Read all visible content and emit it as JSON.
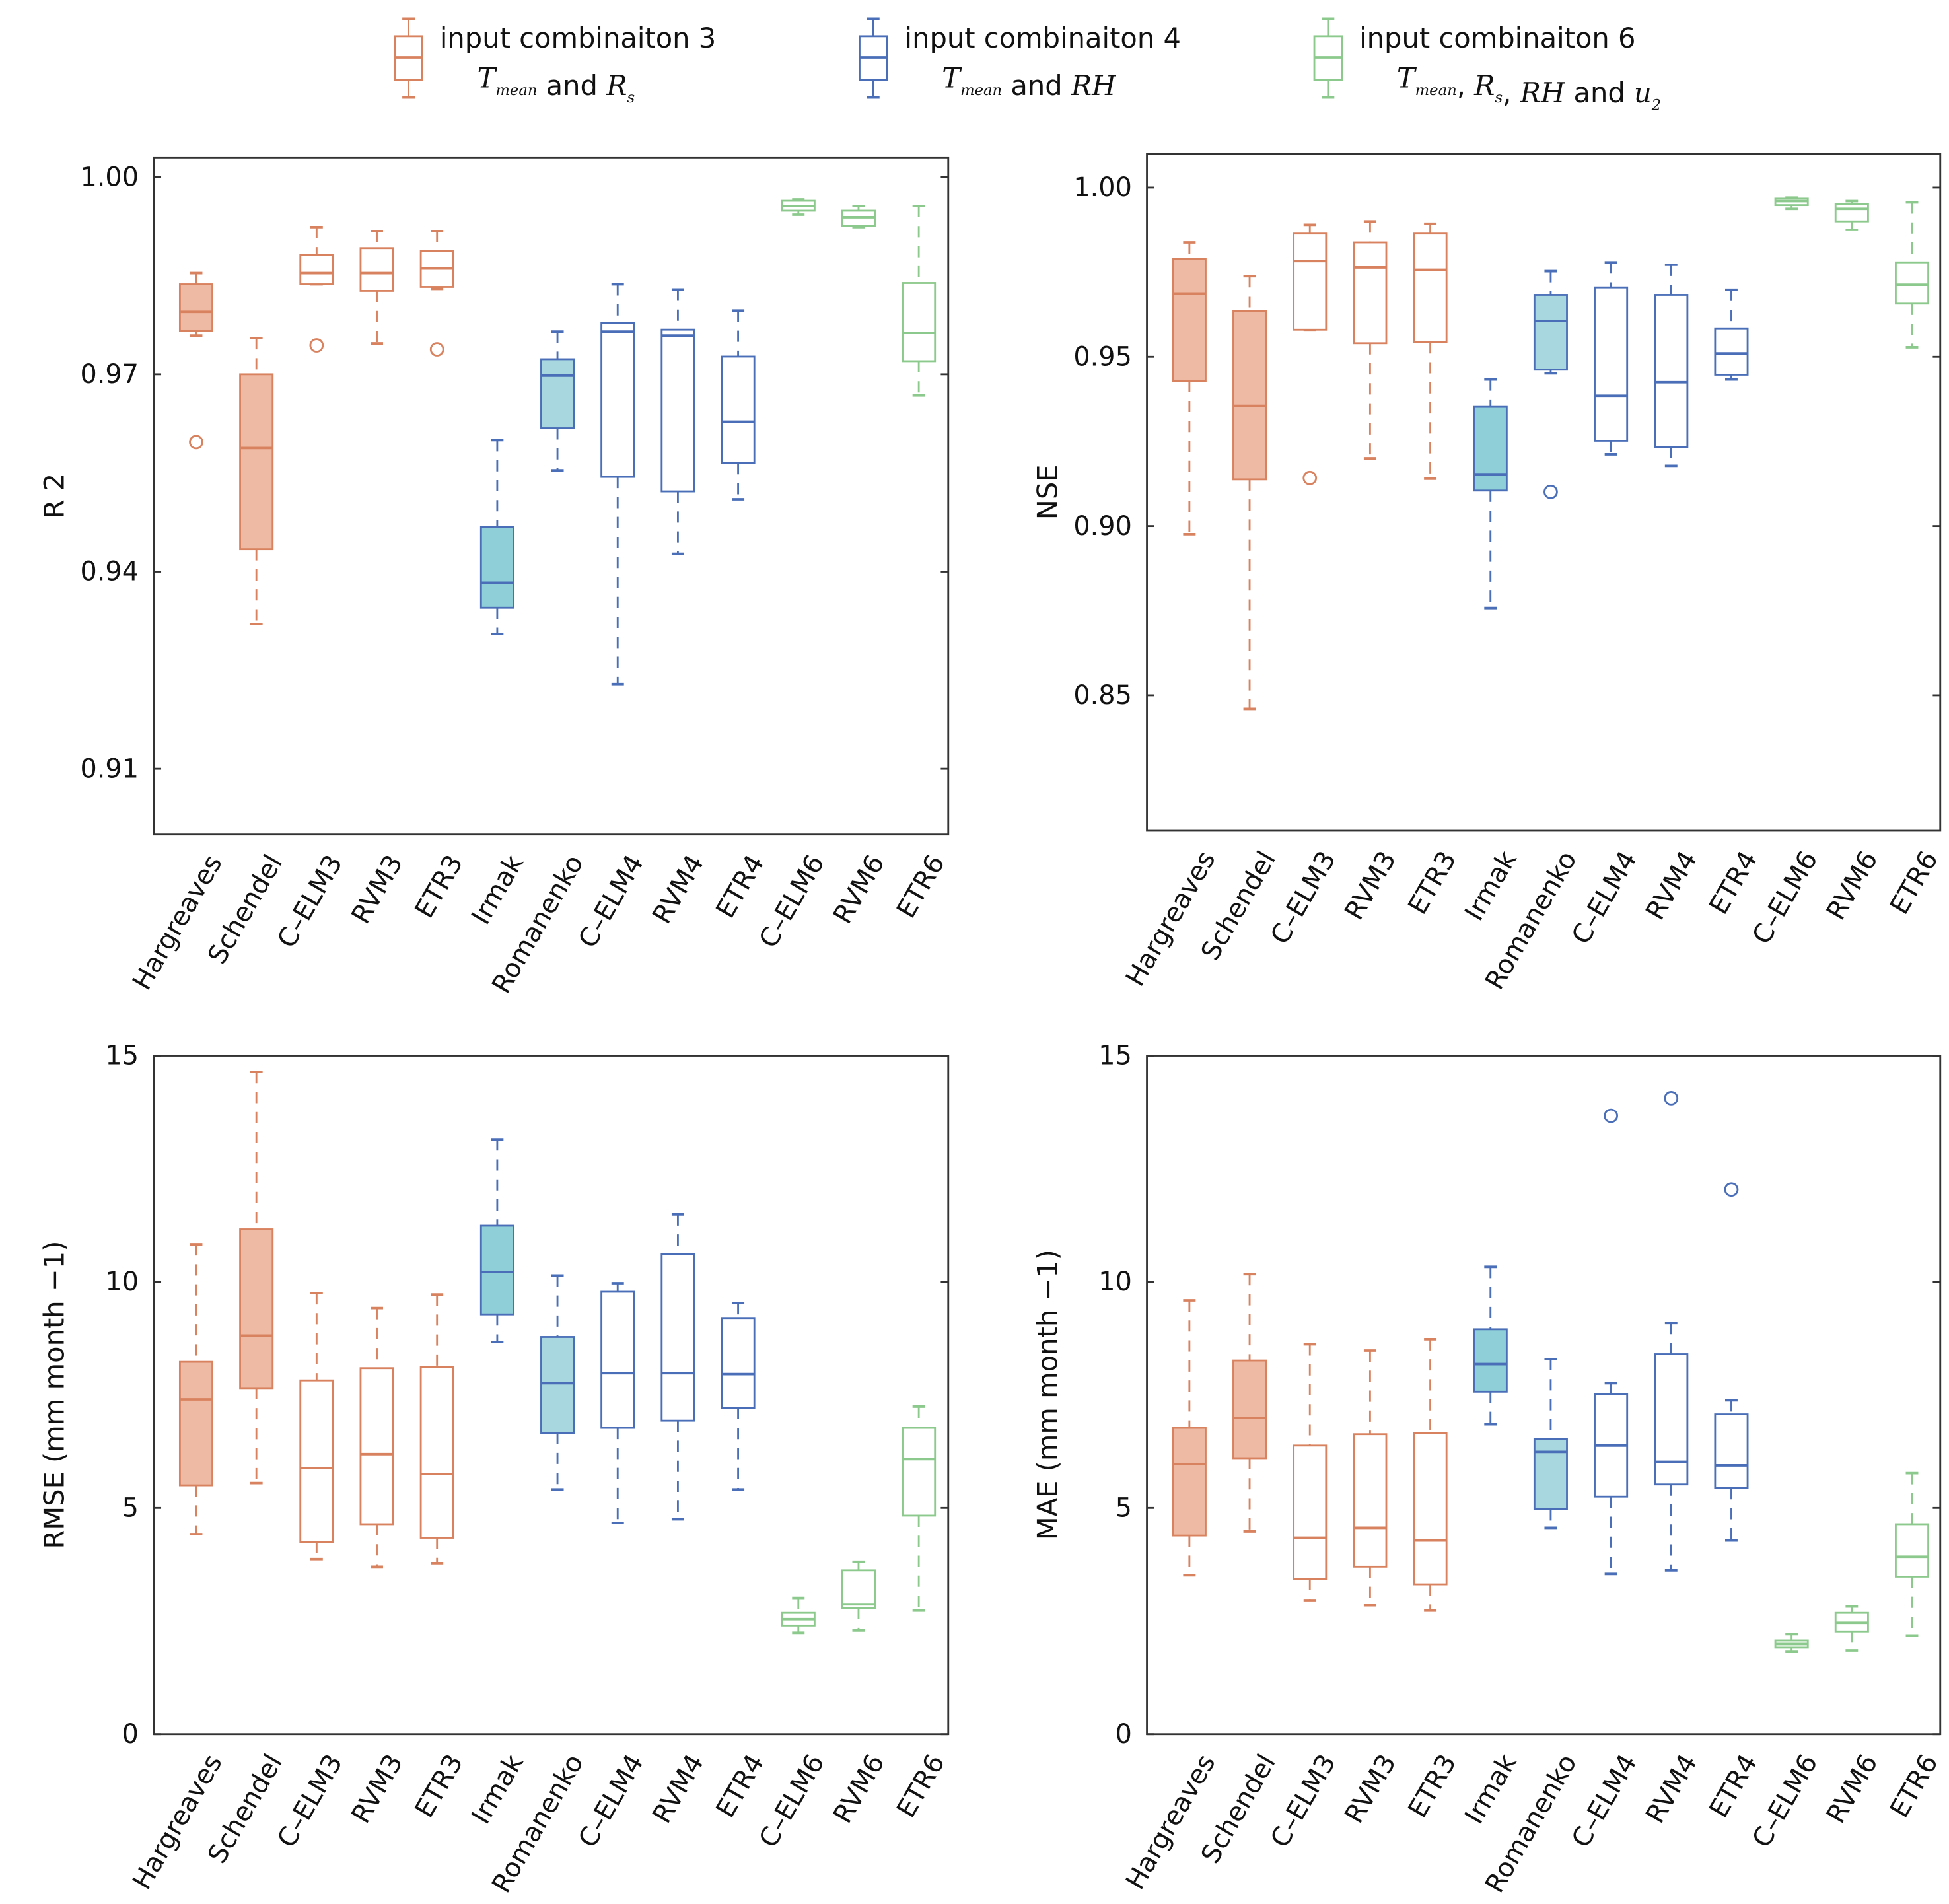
{
  "legend": [
    {
      "title": "input combinaiton 3",
      "formula": [
        [
          "T",
          "mean"
        ],
        [
          " and ",
          ""
        ],
        [
          "R",
          "s"
        ]
      ],
      "color": "#d9825f"
    },
    {
      "title": "input combinaiton 4",
      "formula": [
        [
          "T",
          "mean"
        ],
        [
          " and ",
          ""
        ],
        [
          "RH",
          ""
        ]
      ],
      "color": "#4a6fb8"
    },
    {
      "title": "input combinaiton 6",
      "formula": [
        [
          "T",
          "mean"
        ],
        [
          ", ",
          ""
        ],
        [
          "R",
          "s"
        ],
        [
          ", ",
          ""
        ],
        [
          "RH",
          ""
        ],
        [
          " and ",
          ""
        ],
        [
          "u",
          "2"
        ]
      ],
      "color": "#8cc98c"
    }
  ],
  "colors": {
    "orange": "#d9825f",
    "orange_fill": "#eebaa3",
    "blue": "#4a6fb8",
    "teal_fill_dark": "#8fd0d8",
    "teal_fill_light": "#a9d7df",
    "green": "#8cc98c"
  },
  "chart_data": [
    {
      "type": "box",
      "ylabel": "R 2",
      "ylim": [
        0.9,
        1.003
      ],
      "yticks": [
        1.0,
        0.97,
        0.94,
        0.91
      ],
      "tick_format": 2,
      "categories": [
        "Hargreaves",
        "Schendel",
        "C–ELM3",
        "RVM3",
        "ETR3",
        "Irmak",
        "Romanenko",
        "C–ELM4",
        "RVM4",
        "ETR4",
        "C–ELM6",
        "RVM6",
        "ETR6"
      ],
      "groups": [
        "3",
        "3",
        "3",
        "3",
        "3",
        "4",
        "4",
        "4",
        "4",
        "4",
        "6",
        "6",
        "6"
      ],
      "filled": [
        true,
        true,
        false,
        false,
        false,
        true,
        true,
        false,
        false,
        false,
        false,
        false,
        false
      ],
      "boxes": [
        {
          "min": 0.9759,
          "q1": 0.9766,
          "median": 0.9795,
          "q3": 0.9837,
          "max": 0.9854,
          "outliers": [
            0.9597
          ]
        },
        {
          "min": 0.932,
          "q1": 0.9434,
          "median": 0.9588,
          "q3": 0.97,
          "max": 0.9755,
          "outliers": []
        },
        {
          "min": 0.9837,
          "q1": 0.9837,
          "median": 0.9854,
          "q3": 0.9882,
          "max": 0.9924,
          "outliers": [
            0.9744
          ]
        },
        {
          "min": 0.9747,
          "q1": 0.9827,
          "median": 0.9854,
          "q3": 0.9892,
          "max": 0.9918,
          "outliers": []
        },
        {
          "min": 0.983,
          "q1": 0.9833,
          "median": 0.9861,
          "q3": 0.9888,
          "max": 0.9918,
          "outliers": [
            0.9738
          ]
        },
        {
          "min": 0.9305,
          "q1": 0.9345,
          "median": 0.9383,
          "q3": 0.9468,
          "max": 0.96,
          "outliers": []
        },
        {
          "min": 0.9554,
          "q1": 0.9618,
          "median": 0.9698,
          "q3": 0.9723,
          "max": 0.9765,
          "outliers": []
        },
        {
          "min": 0.9229,
          "q1": 0.9544,
          "median": 0.9765,
          "q3": 0.9778,
          "max": 0.9837,
          "outliers": []
        },
        {
          "min": 0.9427,
          "q1": 0.9522,
          "median": 0.9759,
          "q3": 0.9768,
          "max": 0.9829,
          "outliers": []
        },
        {
          "min": 0.951,
          "q1": 0.9565,
          "median": 0.9628,
          "q3": 0.9727,
          "max": 0.9797,
          "outliers": []
        },
        {
          "min": 0.9943,
          "q1": 0.9949,
          "median": 0.9956,
          "q3": 0.9964,
          "max": 0.9966,
          "outliers": []
        },
        {
          "min": 0.9924,
          "q1": 0.9926,
          "median": 0.9939,
          "q3": 0.9949,
          "max": 0.9956,
          "outliers": []
        },
        {
          "min": 0.9668,
          "q1": 0.972,
          "median": 0.9763,
          "q3": 0.9839,
          "max": 0.9956,
          "outliers": []
        }
      ]
    },
    {
      "type": "box",
      "ylabel": "NSE",
      "ylim": [
        0.81,
        1.01
      ],
      "yticks": [
        1.0,
        0.95,
        0.9,
        0.85
      ],
      "tick_format": 2,
      "categories": [
        "Hargreaves",
        "Schendel",
        "C–ELM3",
        "RVM3",
        "ETR3",
        "Irmak",
        "Romanenko",
        "C–ELM4",
        "RVM4",
        "ETR4",
        "C–ELM6",
        "RVM6",
        "ETR6"
      ],
      "groups": [
        "3",
        "3",
        "3",
        "3",
        "3",
        "4",
        "4",
        "4",
        "4",
        "4",
        "6",
        "6",
        "6"
      ],
      "filled": [
        true,
        true,
        false,
        false,
        false,
        true,
        true,
        false,
        false,
        false,
        false,
        false,
        false
      ],
      "boxes": [
        {
          "min": 0.8976,
          "q1": 0.9429,
          "median": 0.9687,
          "q3": 0.979,
          "max": 0.9838,
          "outliers": []
        },
        {
          "min": 0.846,
          "q1": 0.9138,
          "median": 0.9355,
          "q3": 0.9635,
          "max": 0.9738,
          "outliers": []
        },
        {
          "min": 0.958,
          "q1": 0.958,
          "median": 0.9783,
          "q3": 0.9864,
          "max": 0.989,
          "outliers": [
            0.9142
          ]
        },
        {
          "min": 0.92,
          "q1": 0.954,
          "median": 0.9764,
          "q3": 0.9838,
          "max": 0.99,
          "outliers": []
        },
        {
          "min": 0.914,
          "q1": 0.9543,
          "median": 0.9757,
          "q3": 0.9864,
          "max": 0.9893,
          "outliers": []
        },
        {
          "min": 0.8758,
          "q1": 0.9105,
          "median": 0.9153,
          "q3": 0.9352,
          "max": 0.9433,
          "outliers": []
        },
        {
          "min": 0.9451,
          "q1": 0.9462,
          "median": 0.9606,
          "q3": 0.9683,
          "max": 0.9753,
          "outliers": [
            0.9101
          ]
        },
        {
          "min": 0.9212,
          "q1": 0.9252,
          "median": 0.9385,
          "q3": 0.9705,
          "max": 0.9779,
          "outliers": []
        },
        {
          "min": 0.9178,
          "q1": 0.9234,
          "median": 0.9425,
          "q3": 0.9683,
          "max": 0.9772,
          "outliers": []
        },
        {
          "min": 0.9433,
          "q1": 0.9447,
          "median": 0.951,
          "q3": 0.9584,
          "max": 0.9698,
          "outliers": []
        },
        {
          "min": 0.9937,
          "q1": 0.9948,
          "median": 0.996,
          "q3": 0.9967,
          "max": 0.997,
          "outliers": []
        },
        {
          "min": 0.9875,
          "q1": 0.99,
          "median": 0.9937,
          "q3": 0.9952,
          "max": 0.996,
          "outliers": []
        },
        {
          "min": 0.9528,
          "q1": 0.9657,
          "median": 0.9713,
          "q3": 0.9779,
          "max": 0.9956,
          "outliers": []
        }
      ]
    },
    {
      "type": "box",
      "ylabel": "RMSE (mm month −1)",
      "ylim": [
        0,
        15
      ],
      "yticks": [
        15,
        10,
        5,
        0
      ],
      "tick_format": 0,
      "categories": [
        "Hargreaves",
        "Schendel",
        "C–ELM3",
        "RVM3",
        "ETR3",
        "Irmak",
        "Romanenko",
        "C–ELM4",
        "RVM4",
        "ETR4",
        "C–ELM6",
        "RVM6",
        "ETR6"
      ],
      "groups": [
        "3",
        "3",
        "3",
        "3",
        "3",
        "4",
        "4",
        "4",
        "4",
        "4",
        "6",
        "6",
        "6"
      ],
      "filled": [
        true,
        true,
        false,
        false,
        false,
        true,
        true,
        false,
        false,
        false,
        false,
        false,
        false
      ],
      "boxes": [
        {
          "min": 4.42,
          "q1": 5.5,
          "median": 7.4,
          "q3": 8.23,
          "max": 10.83,
          "outliers": []
        },
        {
          "min": 5.55,
          "q1": 7.65,
          "median": 8.81,
          "q3": 11.16,
          "max": 14.64,
          "outliers": []
        },
        {
          "min": 3.87,
          "q1": 4.25,
          "median": 5.88,
          "q3": 7.82,
          "max": 9.75,
          "outliers": []
        },
        {
          "min": 3.7,
          "q1": 4.64,
          "median": 6.19,
          "q3": 8.09,
          "max": 9.42,
          "outliers": []
        },
        {
          "min": 3.78,
          "q1": 4.34,
          "median": 5.75,
          "q3": 8.12,
          "max": 9.72,
          "outliers": []
        },
        {
          "min": 8.67,
          "q1": 9.28,
          "median": 10.22,
          "q3": 11.24,
          "max": 13.15,
          "outliers": []
        },
        {
          "min": 5.41,
          "q1": 6.66,
          "median": 7.76,
          "q3": 8.78,
          "max": 10.14,
          "outliers": []
        },
        {
          "min": 4.67,
          "q1": 6.77,
          "median": 7.98,
          "q3": 9.78,
          "max": 9.97,
          "outliers": []
        },
        {
          "min": 4.75,
          "q1": 6.93,
          "median": 7.98,
          "q3": 10.61,
          "max": 11.49,
          "outliers": []
        },
        {
          "min": 5.41,
          "q1": 7.21,
          "median": 7.96,
          "q3": 9.2,
          "max": 9.53,
          "outliers": []
        },
        {
          "min": 2.24,
          "q1": 2.4,
          "median": 2.54,
          "q3": 2.68,
          "max": 3.01,
          "outliers": []
        },
        {
          "min": 2.29,
          "q1": 2.79,
          "median": 2.87,
          "q3": 3.62,
          "max": 3.81,
          "outliers": []
        },
        {
          "min": 2.73,
          "q1": 4.83,
          "median": 6.08,
          "q3": 6.77,
          "max": 7.24,
          "outliers": []
        }
      ]
    },
    {
      "type": "box",
      "ylabel": "MAE (mm month −1)",
      "ylim": [
        0,
        15
      ],
      "yticks": [
        15,
        10,
        5,
        0
      ],
      "tick_format": 0,
      "categories": [
        "Hargreaves",
        "Schendel",
        "C–ELM3",
        "RVM3",
        "ETR3",
        "Irmak",
        "Romanenko",
        "C–ELM4",
        "RVM4",
        "ETR4",
        "C–ELM6",
        "RVM6",
        "ETR6"
      ],
      "groups": [
        "3",
        "3",
        "3",
        "3",
        "3",
        "4",
        "4",
        "4",
        "4",
        "4",
        "6",
        "6",
        "6"
      ],
      "filled": [
        true,
        true,
        false,
        false,
        false,
        true,
        true,
        false,
        false,
        false,
        false,
        false,
        false
      ],
      "boxes": [
        {
          "min": 3.51,
          "q1": 4.39,
          "median": 5.97,
          "q3": 6.77,
          "max": 9.59,
          "outliers": []
        },
        {
          "min": 4.48,
          "q1": 6.1,
          "median": 6.99,
          "q3": 8.26,
          "max": 10.17,
          "outliers": []
        },
        {
          "min": 2.96,
          "q1": 3.43,
          "median": 4.34,
          "q3": 6.38,
          "max": 8.62,
          "outliers": []
        },
        {
          "min": 2.85,
          "q1": 3.7,
          "median": 4.56,
          "q3": 6.63,
          "max": 8.48,
          "outliers": []
        },
        {
          "min": 2.73,
          "q1": 3.31,
          "median": 4.28,
          "q3": 6.66,
          "max": 8.73,
          "outliers": []
        },
        {
          "min": 6.85,
          "q1": 7.57,
          "median": 8.18,
          "q3": 8.95,
          "max": 10.33,
          "outliers": []
        },
        {
          "min": 4.56,
          "q1": 4.97,
          "median": 6.24,
          "q3": 6.52,
          "max": 8.29,
          "outliers": []
        },
        {
          "min": 3.54,
          "q1": 5.25,
          "median": 6.38,
          "q3": 7.51,
          "max": 7.76,
          "outliers": [
            13.67
          ]
        },
        {
          "min": 3.62,
          "q1": 5.52,
          "median": 6.02,
          "q3": 8.4,
          "max": 9.09,
          "outliers": [
            14.06
          ]
        },
        {
          "min": 4.28,
          "q1": 5.44,
          "median": 5.94,
          "q3": 7.07,
          "max": 7.38,
          "outliers": [
            12.04
          ]
        },
        {
          "min": 1.82,
          "q1": 1.91,
          "median": 1.99,
          "q3": 2.07,
          "max": 2.21,
          "outliers": []
        },
        {
          "min": 1.85,
          "q1": 2.27,
          "median": 2.46,
          "q3": 2.68,
          "max": 2.82,
          "outliers": []
        },
        {
          "min": 2.18,
          "q1": 3.48,
          "median": 3.92,
          "q3": 4.64,
          "max": 5.77,
          "outliers": []
        }
      ]
    }
  ]
}
